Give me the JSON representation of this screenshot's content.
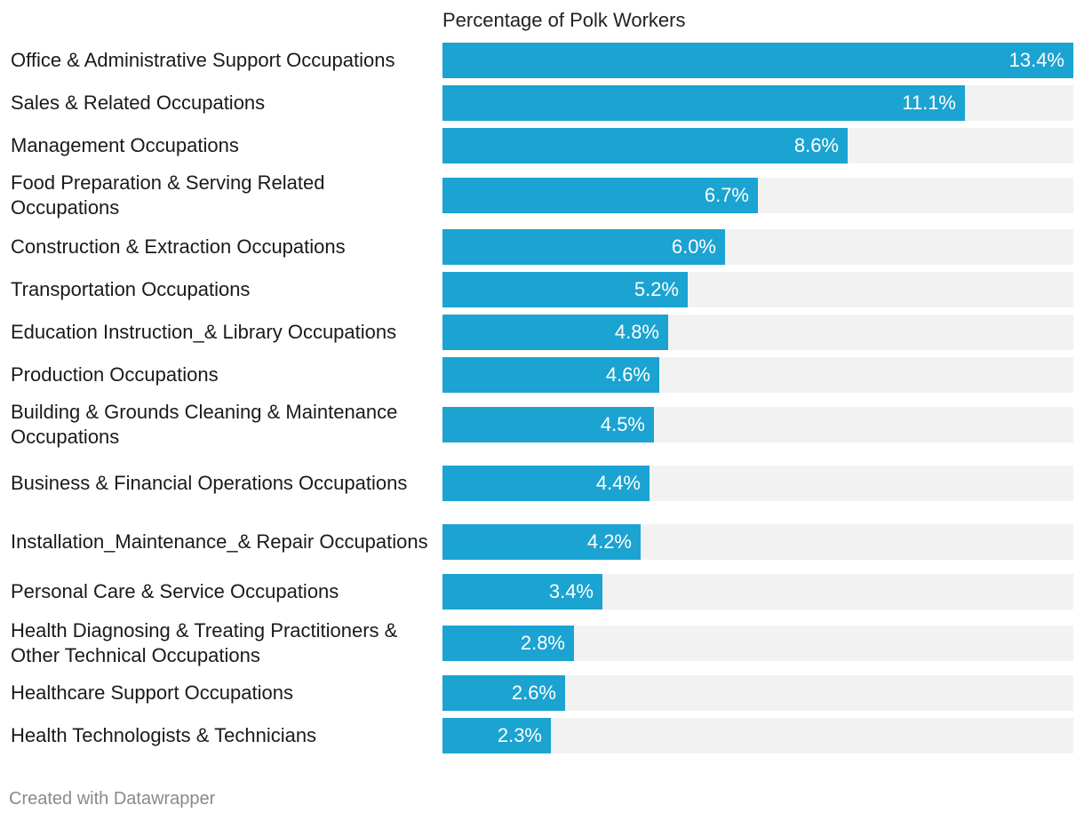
{
  "chart_data": {
    "type": "bar",
    "orientation": "horizontal",
    "title": "",
    "column_header": "Percentage of Polk Workers",
    "categories": [
      "Office & Administrative Support Occupations",
      "Sales & Related Occupations",
      "Management Occupations",
      "Food Preparation & Serving Related Occupations",
      "Construction & Extraction Occupations",
      "Transportation Occupations",
      "Education Instruction_& Library Occupations",
      "Production Occupations",
      "Building & Grounds Cleaning & Maintenance Occupations",
      "Business & Financial Operations Occupations",
      "Installation_Maintenance_& Repair Occupations",
      "Personal Care & Service Occupations",
      "Health Diagnosing & Treating Practitioners & Other Technical Occupations",
      "Healthcare Support Occupations",
      "Health Technologists & Technicians"
    ],
    "values": [
      13.4,
      11.1,
      8.6,
      6.7,
      6.0,
      5.2,
      4.8,
      4.6,
      4.5,
      4.4,
      4.2,
      3.4,
      2.8,
      2.6,
      2.3
    ],
    "value_labels": [
      "13.4%",
      "11.1%",
      "8.6%",
      "6.7%",
      "6.0%",
      "5.2%",
      "4.8%",
      "4.6%",
      "4.5%",
      "4.4%",
      "4.2%",
      "3.4%",
      "2.8%",
      "2.6%",
      "2.3%"
    ],
    "xlim": [
      0,
      13.4
    ],
    "unit": "%",
    "bar_color": "#1ba3d1",
    "track_color": "#f2f2f2",
    "value_label_color": "#ffffff"
  },
  "footer": {
    "credit": "Created with Datawrapper"
  }
}
